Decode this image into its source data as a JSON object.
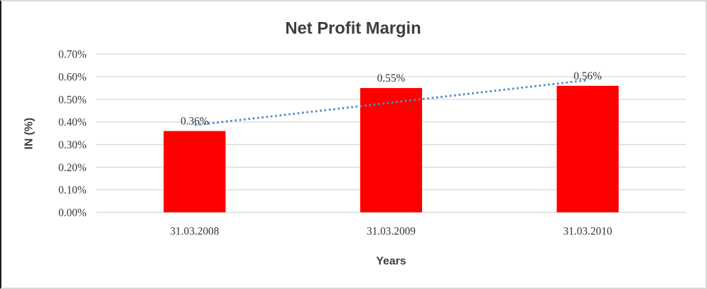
{
  "frame": {
    "background_color": "#ffffff",
    "border_color": "#d9d9d9",
    "left_edge_color": "#1f1f1f"
  },
  "chart_data": {
    "type": "bar",
    "title": "Net Profit Margin",
    "xlabel": "Years",
    "ylabel": "IN (%)",
    "categories": [
      "31.03.2008",
      "31.03.2009",
      "31.03.2010"
    ],
    "values": [
      0.36,
      0.55,
      0.56
    ],
    "data_labels": [
      "0.36%",
      "0.55%",
      "0.56%"
    ],
    "y_ticks": [
      "0.00%",
      "0.10%",
      "0.20%",
      "0.30%",
      "0.40%",
      "0.50%",
      "0.60%",
      "0.70%"
    ],
    "ylim": [
      0,
      0.7
    ],
    "grid": true,
    "legend": "none",
    "bar_color": "#ff0000",
    "gridline_color": "#d9d9d9",
    "text_color": "#3f3f3f",
    "trendline": {
      "type": "linear",
      "style": "dotted",
      "color": "#4f8bc9",
      "start_value": 0.386,
      "end_value": 0.585
    }
  }
}
